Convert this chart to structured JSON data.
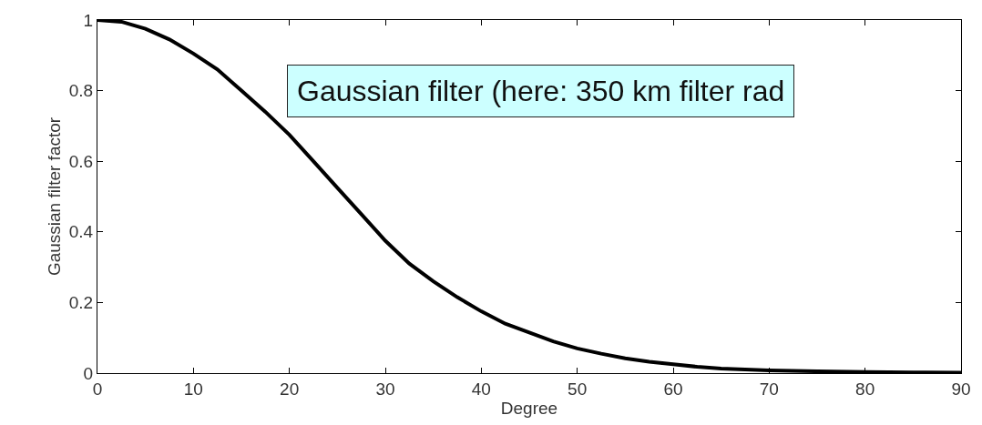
{
  "chart_data": {
    "type": "line",
    "xlabel": "Degree",
    "ylabel": "Gaussian filter factor",
    "annotations": [
      "Gaussian filter (here: 350 km filter rad"
    ],
    "x": [
      0,
      2.5,
      5,
      7.5,
      10,
      12.5,
      15,
      17.5,
      20,
      22.5,
      25,
      27.5,
      30,
      32.5,
      35,
      37.5,
      40,
      42.5,
      45,
      47.5,
      50,
      52.5,
      55,
      57.5,
      60,
      62.5,
      65,
      67.5,
      70,
      75,
      80,
      85,
      90
    ],
    "series": [
      {
        "color": "#000000",
        "values": [
          1,
          0.995,
          0.975,
          0.945,
          0.905,
          0.86,
          0.8,
          0.74,
          0.675,
          0.6,
          0.525,
          0.45,
          0.375,
          0.31,
          0.26,
          0.215,
          0.175,
          0.14,
          0.115,
          0.09,
          0.07,
          0.055,
          0.042,
          0.032,
          0.025,
          0.018,
          0.013,
          0.01,
          0.008,
          0.005,
          0.003,
          0.002,
          0.001
        ]
      }
    ],
    "xlim": [
      0,
      90
    ],
    "xticks": [
      0,
      10,
      20,
      30,
      40,
      50,
      60,
      70,
      80,
      90
    ],
    "ylim": [
      0,
      1
    ],
    "yticks": [
      0,
      0.2,
      0.4,
      0.6,
      0.8,
      1
    ],
    "legend": false,
    "marker": "none",
    "line_style": "solid"
  }
}
